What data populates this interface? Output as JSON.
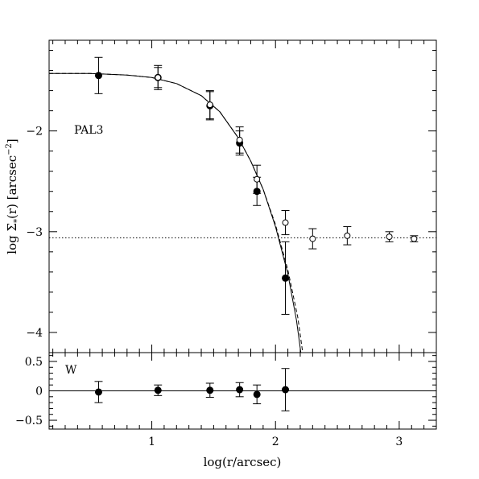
{
  "chart_data": [
    {
      "type": "scatter",
      "title": "",
      "annotation": "PAL3",
      "xlabel": "log(r/arcsec)",
      "ylabel_prefix": "log Σ",
      "ylabel_sub": "*",
      "ylabel_mid": "(r) [arcsec",
      "ylabel_sup": "−2",
      "ylabel_suffix": "]",
      "xlim": [
        0.17,
        3.3
      ],
      "ylim": [
        -4.2,
        -1.1
      ],
      "grid": false,
      "xticks": [
        1,
        2,
        3
      ],
      "yticks": [
        -2,
        -3,
        -4
      ],
      "ytick_labels": [
        "−2",
        "−3",
        "−4"
      ],
      "background_level": -3.06,
      "series": [
        {
          "marker": "filled-circle",
          "x": [
            0.57,
            1.05,
            1.47,
            1.71,
            1.85,
            2.08
          ],
          "y": [
            -1.45,
            -1.47,
            -1.75,
            -2.12,
            -2.6,
            -3.46
          ],
          "yerr": [
            0.18,
            0.1,
            0.14,
            0.12,
            0.14,
            0.36
          ]
        },
        {
          "marker": "open-circle",
          "x": [
            1.05,
            1.47,
            1.71,
            1.85,
            2.08,
            2.3,
            2.58,
            2.92,
            3.12
          ],
          "y": [
            -1.47,
            -1.74,
            -2.09,
            -2.48,
            -2.91,
            -3.07,
            -3.04,
            -3.05,
            -3.07
          ],
          "yerr": [
            0.12,
            0.14,
            0.13,
            0.14,
            0.12,
            0.1,
            0.09,
            0.05,
            0.03
          ]
        }
      ],
      "model_solid": [
        [
          0.17,
          -1.43
        ],
        [
          0.5,
          -1.43
        ],
        [
          0.8,
          -1.445
        ],
        [
          1.0,
          -1.47
        ],
        [
          1.2,
          -1.53
        ],
        [
          1.4,
          -1.65
        ],
        [
          1.55,
          -1.81
        ],
        [
          1.7,
          -2.07
        ],
        [
          1.8,
          -2.3
        ],
        [
          1.9,
          -2.58
        ],
        [
          2.0,
          -2.95
        ],
        [
          2.1,
          -3.42
        ],
        [
          2.17,
          -3.88
        ],
        [
          2.205,
          -4.2
        ]
      ],
      "model_dashed": [
        [
          0.17,
          -1.43
        ],
        [
          0.5,
          -1.43
        ],
        [
          0.8,
          -1.445
        ],
        [
          1.0,
          -1.47
        ],
        [
          1.2,
          -1.53
        ],
        [
          1.4,
          -1.65
        ],
        [
          1.55,
          -1.81
        ],
        [
          1.7,
          -2.07
        ],
        [
          1.8,
          -2.3
        ],
        [
          1.9,
          -2.58
        ],
        [
          2.0,
          -2.93
        ],
        [
          2.1,
          -3.38
        ],
        [
          2.18,
          -3.85
        ],
        [
          2.22,
          -4.2
        ]
      ]
    },
    {
      "type": "scatter",
      "title": "",
      "annotation": "W",
      "xlabel": "log(r/arcsec)",
      "ylabel": "",
      "xlim": [
        0.17,
        3.3
      ],
      "ylim": [
        -0.65,
        0.65
      ],
      "grid": false,
      "xticks": [
        1,
        2,
        3
      ],
      "yticks": [
        0.5,
        0,
        -0.5
      ],
      "ytick_labels": [
        "0.5",
        "0",
        "−0.5"
      ],
      "zero_line": 0,
      "series": [
        {
          "marker": "filled-circle",
          "x": [
            0.57,
            1.05,
            1.47,
            1.71,
            1.85,
            2.08
          ],
          "y": [
            -0.02,
            0.01,
            0.01,
            0.02,
            -0.06,
            0.02
          ],
          "yerr": [
            0.18,
            0.09,
            0.12,
            0.12,
            0.16,
            0.36
          ]
        }
      ]
    }
  ]
}
